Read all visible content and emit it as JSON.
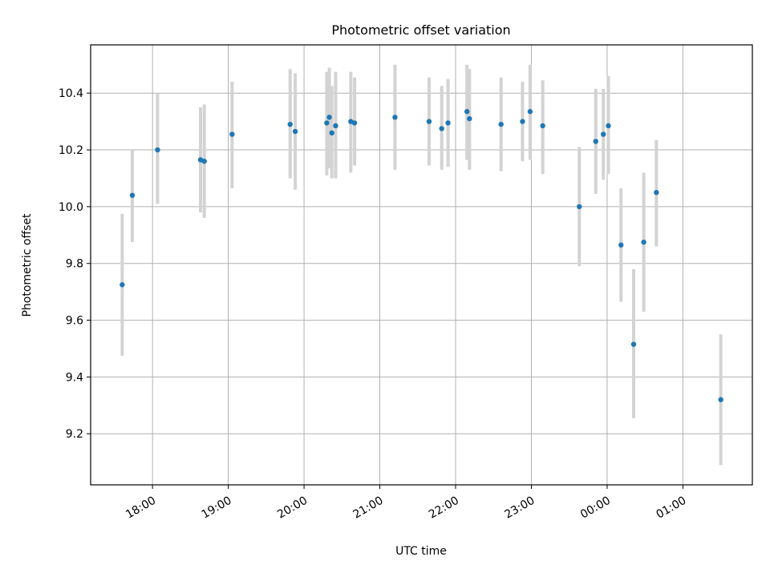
{
  "chart_data": {
    "type": "scatter",
    "title": "Photometric offset variation",
    "xlabel": "UTC time",
    "ylabel": "Photometric offset",
    "grid": true,
    "legend": "none",
    "x_ticks": [
      "18:00",
      "19:00",
      "20:00",
      "21:00",
      "22:00",
      "23:00",
      "00:00",
      "01:00"
    ],
    "y_ticks": [
      "9.2",
      "9.4",
      "9.6",
      "9.8",
      "10.0",
      "10.2",
      "10.4"
    ],
    "xlim": [
      "17:11",
      "01:55"
    ],
    "ylim": [
      9.02,
      10.57
    ],
    "colors": {
      "marker": "#1f77b4",
      "errorbar": "#d3d3d3",
      "grid": "#b0b0b0"
    },
    "points": [
      {
        "t": "17:36",
        "y": 9.725,
        "lo": 9.475,
        "hi": 9.975
      },
      {
        "t": "17:44",
        "y": 10.04,
        "lo": 9.875,
        "hi": 10.2
      },
      {
        "t": "18:04",
        "y": 10.2,
        "lo": 10.01,
        "hi": 10.4
      },
      {
        "t": "18:38",
        "y": 10.165,
        "lo": 9.98,
        "hi": 10.35
      },
      {
        "t": "18:41",
        "y": 10.16,
        "lo": 9.96,
        "hi": 10.36
      },
      {
        "t": "19:03",
        "y": 10.255,
        "lo": 10.065,
        "hi": 10.44
      },
      {
        "t": "19:49",
        "y": 10.29,
        "lo": 10.1,
        "hi": 10.485
      },
      {
        "t": "19:53",
        "y": 10.265,
        "lo": 10.06,
        "hi": 10.47
      },
      {
        "t": "20:18",
        "y": 10.295,
        "lo": 10.11,
        "hi": 10.475
      },
      {
        "t": "20:20",
        "y": 10.315,
        "lo": 10.135,
        "hi": 10.49
      },
      {
        "t": "20:22",
        "y": 10.26,
        "lo": 10.1,
        "hi": 10.425
      },
      {
        "t": "20:25",
        "y": 10.285,
        "lo": 10.1,
        "hi": 10.475
      },
      {
        "t": "20:37",
        "y": 10.3,
        "lo": 10.12,
        "hi": 10.475
      },
      {
        "t": "20:40",
        "y": 10.295,
        "lo": 10.145,
        "hi": 10.455
      },
      {
        "t": "21:12",
        "y": 10.315,
        "lo": 10.13,
        "hi": 10.5
      },
      {
        "t": "21:39",
        "y": 10.3,
        "lo": 10.145,
        "hi": 10.455
      },
      {
        "t": "21:49",
        "y": 10.275,
        "lo": 10.13,
        "hi": 10.425
      },
      {
        "t": "21:54",
        "y": 10.295,
        "lo": 10.14,
        "hi": 10.45
      },
      {
        "t": "22:09",
        "y": 10.335,
        "lo": 10.165,
        "hi": 10.5
      },
      {
        "t": "22:11",
        "y": 10.31,
        "lo": 10.13,
        "hi": 10.485
      },
      {
        "t": "22:36",
        "y": 10.29,
        "lo": 10.125,
        "hi": 10.455
      },
      {
        "t": "22:53",
        "y": 10.3,
        "lo": 10.16,
        "hi": 10.44
      },
      {
        "t": "22:59",
        "y": 10.335,
        "lo": 10.165,
        "hi": 10.5
      },
      {
        "t": "23:09",
        "y": 10.285,
        "lo": 10.115,
        "hi": 10.445
      },
      {
        "t": "23:38",
        "y": 10.0,
        "lo": 9.79,
        "hi": 10.21
      },
      {
        "t": "23:51",
        "y": 10.23,
        "lo": 10.045,
        "hi": 10.415
      },
      {
        "t": "23:57",
        "y": 10.255,
        "lo": 10.095,
        "hi": 10.415
      },
      {
        "t": "00:01",
        "y": 10.285,
        "lo": 10.115,
        "hi": 10.46
      },
      {
        "t": "00:11",
        "y": 9.865,
        "lo": 9.665,
        "hi": 10.065
      },
      {
        "t": "00:21",
        "y": 9.515,
        "lo": 9.255,
        "hi": 9.78
      },
      {
        "t": "00:29",
        "y": 9.875,
        "lo": 9.63,
        "hi": 10.12
      },
      {
        "t": "00:39",
        "y": 10.05,
        "lo": 9.86,
        "hi": 10.235
      },
      {
        "t": "01:30",
        "y": 9.32,
        "lo": 9.09,
        "hi": 9.55
      }
    ]
  }
}
